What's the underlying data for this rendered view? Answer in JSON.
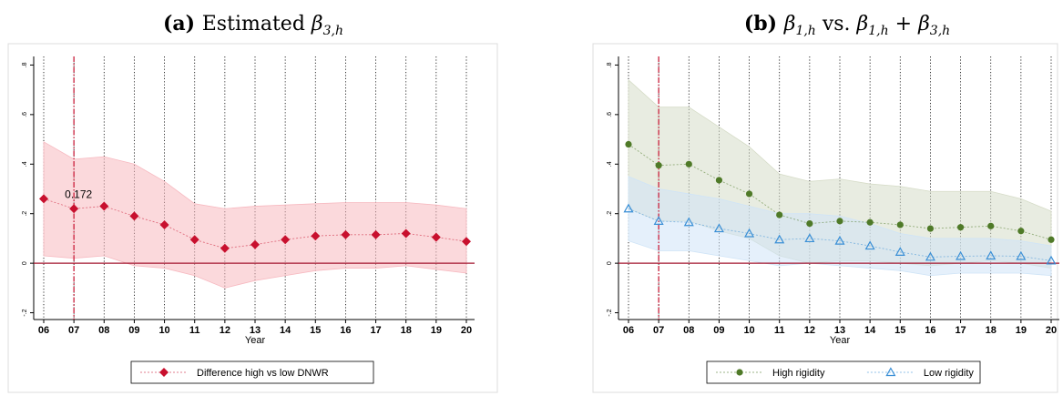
{
  "chart_data": [
    {
      "type": "line",
      "title_prefix": "(a)",
      "title_text": "Estimated",
      "title_math": "β3,h",
      "xlabel": "Year",
      "ylabel": "",
      "x": [
        "06",
        "07",
        "08",
        "09",
        "10",
        "11",
        "12",
        "13",
        "14",
        "15",
        "16",
        "17",
        "18",
        "19",
        "20"
      ],
      "ylim": [
        -0.22,
        0.82
      ],
      "yticks": [
        -0.2,
        0,
        0.2,
        0.4,
        0.6,
        0.8
      ],
      "ytick_labels": [
        "-.2",
        "0",
        ".2",
        ".4",
        ".6",
        ".8"
      ],
      "vline_x": "07",
      "hline_y": 0,
      "grid": "vertical dotted",
      "legend_position": "bottom",
      "series": [
        {
          "name": "Difference high vs low DNWR",
          "marker": "diamond",
          "color": "#c8102e",
          "band_color": "#f7b9c0",
          "values": [
            0.26,
            0.22,
            0.23,
            0.19,
            0.155,
            0.095,
            0.06,
            0.075,
            0.095,
            0.11,
            0.115,
            0.115,
            0.12,
            0.105,
            0.088
          ],
          "upper": [
            0.49,
            0.42,
            0.43,
            0.4,
            0.33,
            0.24,
            0.22,
            0.23,
            0.235,
            0.24,
            0.245,
            0.245,
            0.245,
            0.235,
            0.22
          ],
          "lower": [
            0.03,
            0.02,
            0.03,
            -0.01,
            -0.02,
            -0.05,
            -0.1,
            -0.07,
            -0.05,
            -0.03,
            -0.02,
            -0.02,
            -0.01,
            -0.025,
            -0.04
          ]
        }
      ],
      "annotations": [
        {
          "x": "07",
          "y": 0.22,
          "text": "0.172"
        }
      ]
    },
    {
      "type": "line",
      "title_prefix": "(b)",
      "title_text": "",
      "title_math": "β1,h vs. β1,h + β3,h",
      "xlabel": "Year",
      "ylabel": "",
      "x": [
        "06",
        "07",
        "08",
        "09",
        "10",
        "11",
        "12",
        "13",
        "14",
        "15",
        "16",
        "17",
        "18",
        "19",
        "20"
      ],
      "ylim": [
        -0.22,
        0.82
      ],
      "yticks": [
        -0.2,
        0,
        0.2,
        0.4,
        0.6,
        0.8
      ],
      "ytick_labels": [
        "-.2",
        "0",
        ".2",
        ".4",
        ".6",
        ".8"
      ],
      "vline_x": "07",
      "hline_y": 0,
      "grid": "vertical dotted",
      "legend_position": "bottom",
      "series": [
        {
          "name": "High rigidity",
          "marker": "circle",
          "color": "#4f7a28",
          "band_color": "#d6dcc8",
          "values": [
            0.48,
            0.395,
            0.4,
            0.335,
            0.28,
            0.195,
            0.16,
            0.17,
            0.165,
            0.155,
            0.14,
            0.145,
            0.15,
            0.13,
            0.095
          ],
          "upper": [
            0.74,
            0.63,
            0.63,
            0.55,
            0.47,
            0.36,
            0.33,
            0.34,
            0.32,
            0.31,
            0.29,
            0.29,
            0.29,
            0.26,
            0.21
          ],
          "lower": [
            0.22,
            0.17,
            0.17,
            0.13,
            0.1,
            0.03,
            0.0,
            0.01,
            0.01,
            0.0,
            -0.01,
            0.0,
            0.01,
            0.0,
            -0.02
          ]
        },
        {
          "name": "Low rigidity",
          "marker": "triangle",
          "color": "#3a8fd6",
          "band_color": "#cfe4f7",
          "values": [
            0.22,
            0.17,
            0.165,
            0.14,
            0.12,
            0.095,
            0.1,
            0.09,
            0.07,
            0.045,
            0.025,
            0.028,
            0.03,
            0.028,
            0.01
          ],
          "upper": [
            0.35,
            0.3,
            0.28,
            0.26,
            0.23,
            0.2,
            0.2,
            0.19,
            0.16,
            0.12,
            0.1,
            0.1,
            0.1,
            0.09,
            0.07
          ],
          "lower": [
            0.09,
            0.05,
            0.05,
            0.03,
            0.01,
            -0.01,
            0.0,
            -0.01,
            -0.02,
            -0.03,
            -0.05,
            -0.04,
            -0.04,
            -0.04,
            -0.05
          ]
        }
      ],
      "annotations": []
    }
  ]
}
